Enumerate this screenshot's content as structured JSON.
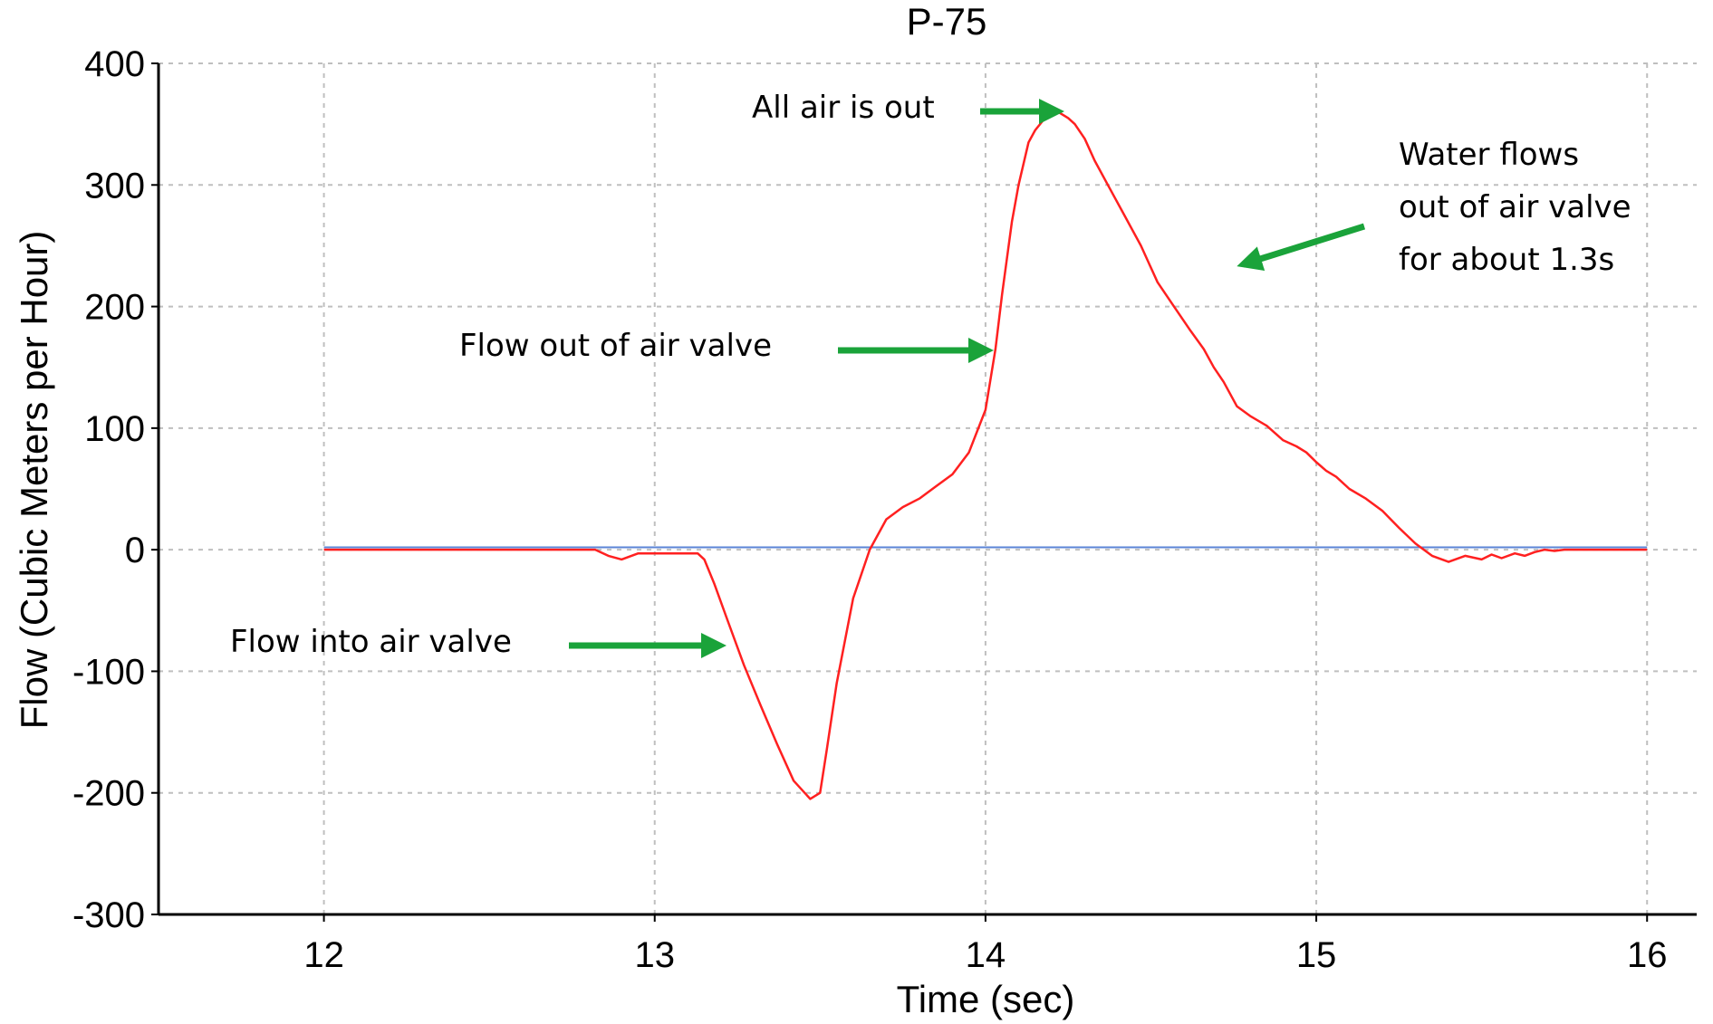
{
  "chart_data": {
    "type": "line",
    "title": "P-75",
    "xlabel": "Time (sec)",
    "ylabel": "Flow (Cubic Meters per Hour)",
    "xlim": [
      11.5,
      16.15
    ],
    "ylim": [
      -300,
      400
    ],
    "xticks": [
      12,
      13,
      14,
      15,
      16
    ],
    "yticks": [
      400,
      300,
      200,
      100,
      0,
      -100,
      -200,
      -300
    ],
    "grid": true,
    "colors": {
      "flow": "#ff2020",
      "baseline": "#5b84d6",
      "arrows": "#1aa33a"
    },
    "series": [
      {
        "key": "baseline",
        "x": [
          12,
          16
        ],
        "y": [
          2,
          2
        ]
      },
      {
        "key": "flow",
        "x": [
          12.0,
          12.5,
          12.82,
          12.86,
          12.9,
          12.95,
          13.0,
          13.05,
          13.1,
          13.13,
          13.15,
          13.18,
          13.22,
          13.27,
          13.32,
          13.37,
          13.42,
          13.47,
          13.5,
          13.52,
          13.55,
          13.6,
          13.65,
          13.7,
          13.75,
          13.8,
          13.85,
          13.9,
          13.95,
          14.0,
          14.03,
          14.05,
          14.08,
          14.1,
          14.13,
          14.15,
          14.18,
          14.2,
          14.22,
          14.25,
          14.27,
          14.3,
          14.33,
          14.37,
          14.42,
          14.47,
          14.52,
          14.57,
          14.62,
          14.66,
          14.69,
          14.72,
          14.76,
          14.8,
          14.85,
          14.9,
          14.94,
          14.97,
          15.0,
          15.03,
          15.06,
          15.1,
          15.15,
          15.2,
          15.25,
          15.3,
          15.35,
          15.4,
          15.45,
          15.5,
          15.53,
          15.56,
          15.6,
          15.63,
          15.66,
          15.69,
          15.72,
          15.75,
          15.78,
          15.81,
          15.84,
          15.87,
          15.9,
          15.93,
          15.96,
          16.0
        ],
        "y": [
          0,
          0,
          0,
          -5,
          -8,
          -3,
          -3,
          -3,
          -3,
          -3,
          -8,
          -28,
          -58,
          -95,
          -128,
          -160,
          -190,
          -205,
          -200,
          -165,
          -110,
          -40,
          0,
          25,
          35,
          42,
          52,
          62,
          80,
          115,
          165,
          210,
          270,
          300,
          335,
          345,
          355,
          362,
          360,
          355,
          350,
          338,
          320,
          300,
          275,
          250,
          220,
          200,
          180,
          165,
          150,
          138,
          118,
          110,
          102,
          90,
          85,
          80,
          72,
          65,
          60,
          50,
          42,
          32,
          18,
          5,
          -5,
          -10,
          -5,
          -8,
          -4,
          -7,
          -3,
          -5,
          -2,
          0,
          -1,
          0,
          0,
          0,
          0,
          0,
          0,
          0,
          0,
          0
        ]
      }
    ],
    "annotations": [
      {
        "text": "All air is out"
      },
      {
        "text": "Water flows"
      },
      {
        "text": "out of air valve"
      },
      {
        "text": "for about 1.3s"
      },
      {
        "text": "Flow out of air valve"
      },
      {
        "text": "Flow into air valve"
      }
    ]
  }
}
